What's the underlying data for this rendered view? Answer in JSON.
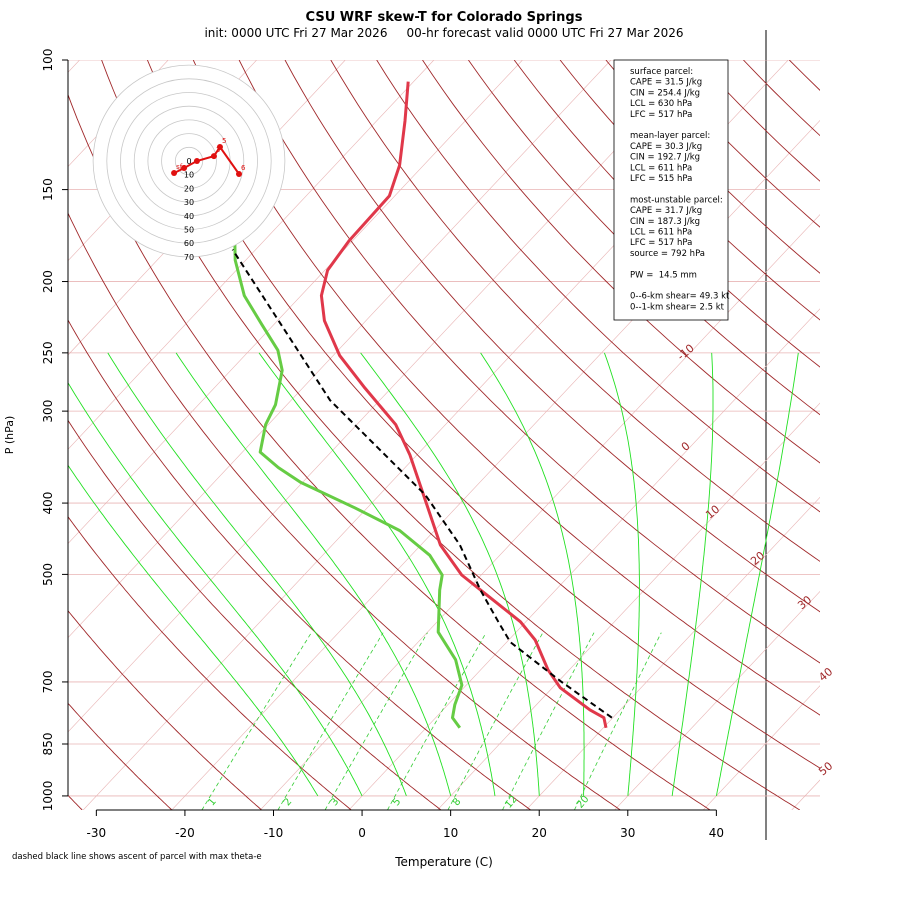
{
  "title": "CSU WRF skew-T for Colorado Springs",
  "subtitle": "init: 0000 UTC Fri 27 Mar 2026     00-hr forecast valid 0000 UTC Fri 27 Mar 2026",
  "footnote": "dashed black line shows ascent of parcel with max theta-e",
  "stats_box": {
    "groups": [
      [
        "surface parcel:",
        "CAPE = 31.5 J/kg",
        "CIN = 254.4 J/kg",
        "LCL = 630 hPa",
        "LFC = 517 hPa"
      ],
      [
        "mean-layer parcel:",
        "CAPE = 30.3 J/kg",
        "CIN = 192.7 J/kg",
        "LCL = 611 hPa",
        "LFC = 515 hPa"
      ],
      [
        "most-unstable parcel:",
        "CAPE = 31.7 J/kg",
        "CIN = 187.3 J/kg",
        "LCL = 611 hPa",
        "LFC = 517 hPa",
        "source = 792 hPa"
      ],
      [
        "PW =  14.5 mm"
      ],
      [
        "0--6-km shear= 49.3 kt",
        "0--1-km shear= 2.5 kt"
      ]
    ]
  },
  "chart_data": {
    "type": "skew-t",
    "xlabel": "Temperature (C)",
    "ylabel": "P (hPa)",
    "xlim": [
      -33.2,
      51.7
    ],
    "ylim": [
      1045,
      100
    ],
    "log_y": true,
    "xticks": [
      -30,
      -20,
      -10,
      0,
      10,
      20,
      30,
      40
    ],
    "yticks": [
      100,
      150,
      200,
      250,
      300,
      400,
      500,
      700,
      850,
      1000
    ],
    "isotherm_labels": [
      -10,
      0,
      10,
      20,
      30,
      40,
      50
    ],
    "mixing_ratio_labels": [
      1,
      2,
      3,
      5,
      8,
      12,
      20
    ],
    "series": [
      {
        "color": "#e0384a",
        "dashed": false,
        "pressure": [
          808,
          783,
          764,
          713,
          674,
          614,
          580,
          537,
          501,
          456,
          396,
          344,
          313,
          279,
          252,
          226,
          209,
          193,
          176,
          153,
          139,
          121,
          107
        ],
        "values": [
          20.3,
          19.0,
          16.6,
          10.9,
          7.6,
          3.0,
          -0.6,
          -6.7,
          -12.2,
          -17.8,
          -24.3,
          -30.8,
          -35.6,
          -43.0,
          -49.3,
          -54.7,
          -57.7,
          -59.7,
          -60.4,
          -60.6,
          -62.7,
          -66.8,
          -70.6
        ]
      },
      {
        "color": "#66cc44",
        "dashed": false,
        "pressure": [
          808,
          783,
          752,
          707,
          653,
          599,
          525,
          501,
          471,
          436,
          406,
          375,
          358,
          341,
          313,
          294,
          264,
          248,
          229,
          209,
          187,
          176
        ],
        "values": [
          3.8,
          1.9,
          0.8,
          -0.5,
          -3.9,
          -8.8,
          -13.1,
          -14.4,
          -17.9,
          -23.9,
          -31.4,
          -40.2,
          -44.3,
          -48.0,
          -50.3,
          -51.3,
          -54.2,
          -56.8,
          -61.3,
          -66.4,
          -71.2,
          -73.3
        ]
      },
      {
        "color": "#000000",
        "dashed": true,
        "pressure": [
          783,
          699,
          618,
          580,
          525,
          456,
          390,
          290,
          181
        ],
        "values": [
          19.9,
          10.3,
          0.4,
          -3.1,
          -8.5,
          -15.6,
          -24.8,
          -45.6,
          -72.6
        ]
      }
    ],
    "hodograph": {
      "color": "#e01010",
      "rings": [
        0,
        10,
        20,
        30,
        40,
        50,
        60,
        70
      ],
      "u": [
        -10.9,
        -3.6,
        5.8,
        18.2,
        22.6,
        36.5
      ],
      "v": [
        -8.8,
        -5.1,
        0,
        3.6,
        10.2,
        -9.5
      ],
      "point_labels": [
        "sfc",
        null,
        null,
        "3",
        "5",
        "6"
      ]
    }
  }
}
